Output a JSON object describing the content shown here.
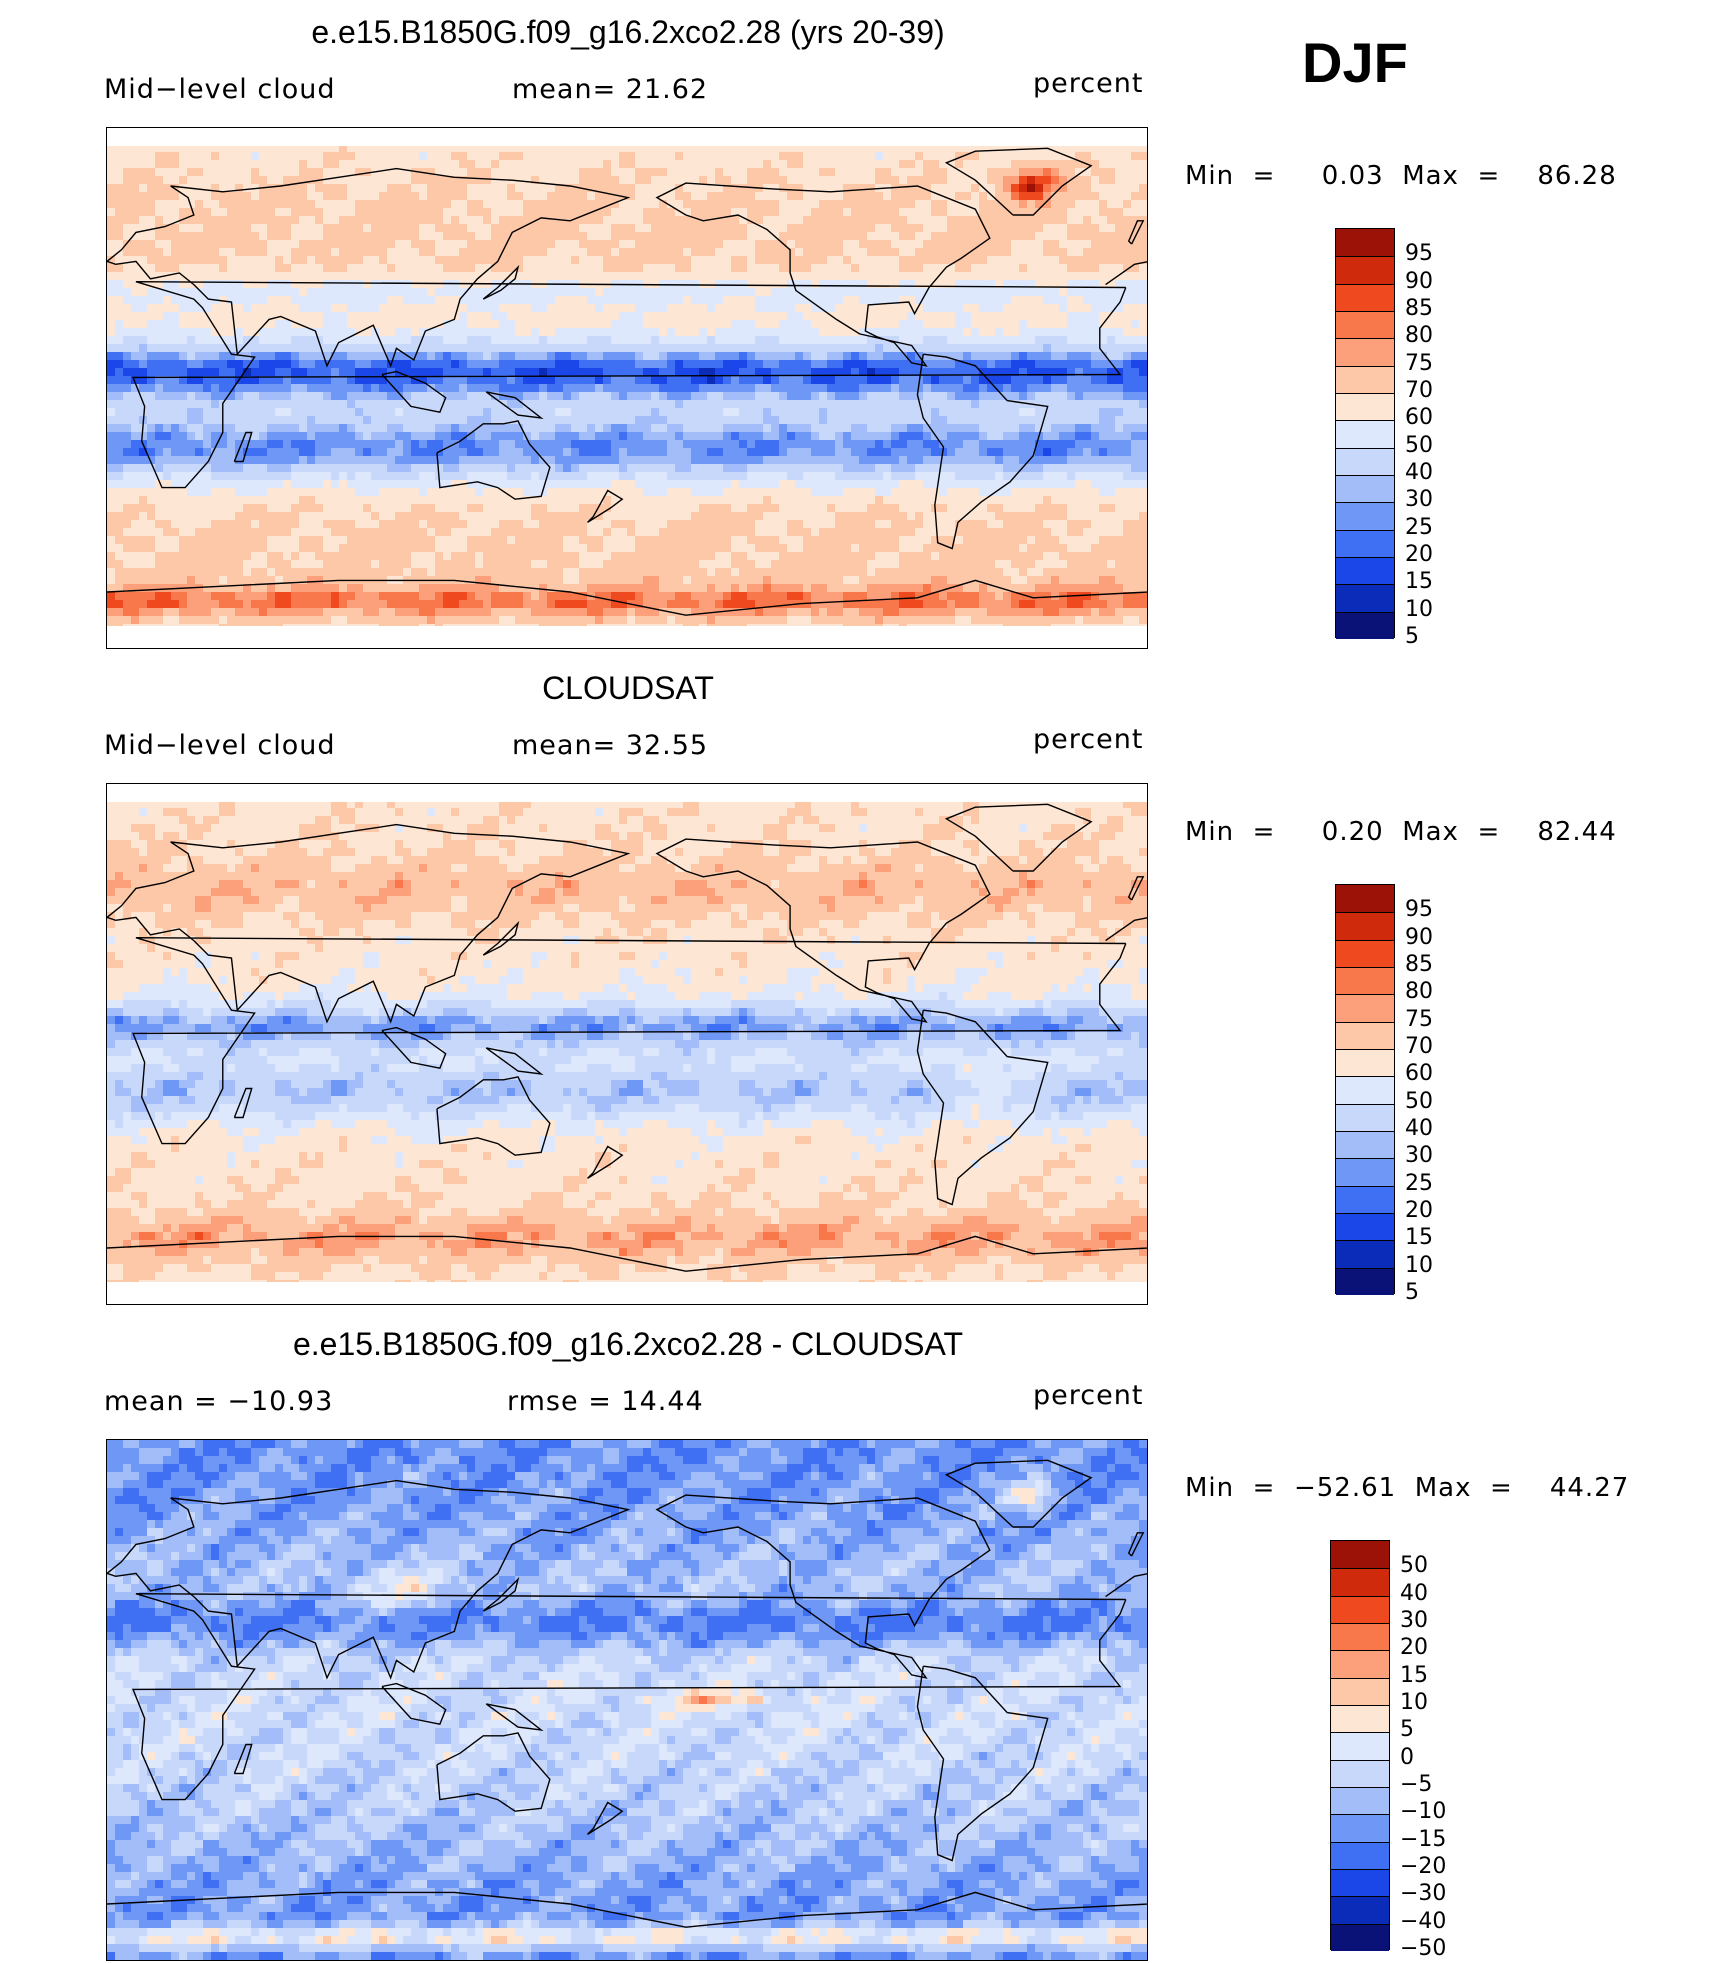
{
  "season": "DJF",
  "colors": {
    "abs": [
      "#0b1277",
      "#0a2cb8",
      "#1b47e8",
      "#3f6ff2",
      "#6f97f5",
      "#a3bdf8",
      "#c8d8fb",
      "#dde8fd",
      "#fde6d3",
      "#fcc8a8",
      "#fba07a",
      "#f8784c",
      "#ef4a1f",
      "#cf2a0c",
      "#9c1206"
    ],
    "diff": [
      "#0b1277",
      "#0a2cb8",
      "#1b47e8",
      "#3f6ff2",
      "#6f97f5",
      "#a3bdf8",
      "#c8d8fb",
      "#dde8fd",
      "#fde6d3",
      "#fcc8a8",
      "#fba07a",
      "#f8784c",
      "#ef4a1f",
      "#cf2a0c",
      "#9c1206"
    ]
  },
  "panels": [
    {
      "title": "e.e15.B1850G.f09_g16.2xco2.28 (yrs 20-39)",
      "left_label": "Mid−level  cloud",
      "center_label": "mean=   21.62",
      "units": "percent",
      "minmax": "Min  =     0.03  Max  =    86.28",
      "map_type": "model",
      "colorbar": [
        "95",
        "90",
        "85",
        "80",
        "75",
        "70",
        "60",
        "50",
        "40",
        "30",
        "25",
        "20",
        "15",
        "10",
        "5"
      ]
    },
    {
      "title": "CLOUDSAT",
      "left_label": "Mid−level  cloud",
      "center_label": "mean=   32.55",
      "units": "percent",
      "minmax": "Min  =     0.20  Max  =    82.44",
      "map_type": "obs",
      "colorbar": [
        "95",
        "90",
        "85",
        "80",
        "75",
        "70",
        "60",
        "50",
        "40",
        "30",
        "25",
        "20",
        "15",
        "10",
        "5"
      ]
    },
    {
      "title": "e.e15.B1850G.f09_g16.2xco2.28 - CLOUDSAT",
      "left_label": "mean  =  −10.93",
      "center_label": "rmse  =    14.44",
      "units": "percent",
      "minmax": "Min  =  −52.61  Max  =    44.27",
      "map_type": "diff",
      "colorbar": [
        "50",
        "40",
        "30",
        "20",
        "15",
        "10",
        "5",
        "0",
        "−5",
        "−10",
        "−15",
        "−20",
        "−30",
        "−40",
        "−50"
      ]
    }
  ]
}
